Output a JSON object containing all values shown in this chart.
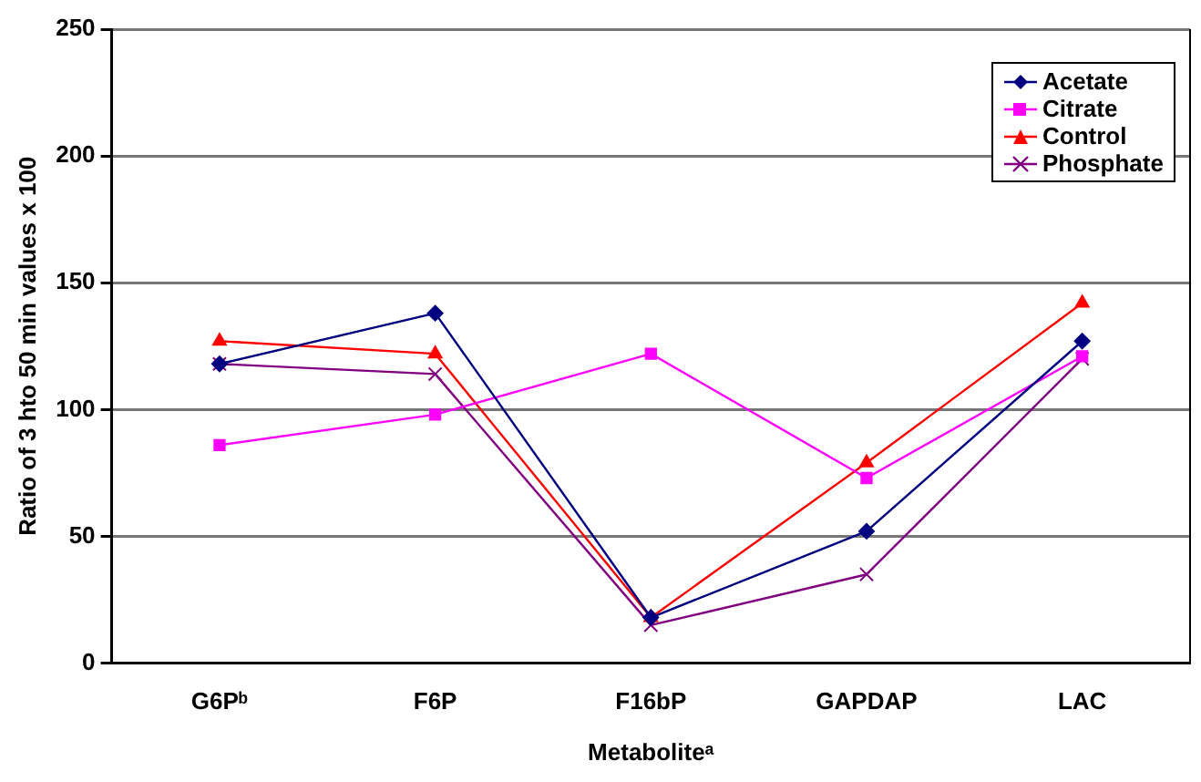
{
  "chart_data": {
    "type": "line",
    "xlabel": "Metaboliteᵃ",
    "ylabel": "Ratio of 3 hto 50 min values x 100",
    "categories": [
      "G6Pᵇ",
      "F6P",
      "F16bP",
      "GAPDAP",
      "LAC"
    ],
    "series": [
      {
        "name": "Acetate",
        "color": "#000080",
        "marker": "diamond",
        "values": [
          118,
          138,
          18,
          52,
          127
        ]
      },
      {
        "name": "Citrate",
        "color": "#ff00ff",
        "marker": "square",
        "values": [
          86,
          98,
          122,
          73,
          121
        ]
      },
      {
        "name": "Control",
        "color": "#ff0000",
        "marker": "triangle",
        "values": [
          127,
          122,
          18,
          79,
          142
        ]
      },
      {
        "name": "Phosphate",
        "color": "#800080",
        "marker": "cross",
        "values": [
          118,
          114,
          15,
          35,
          120
        ]
      }
    ],
    "ylim": [
      0,
      250
    ],
    "yticks": [
      0,
      50,
      100,
      150,
      200,
      250
    ],
    "grid": "y",
    "legend": "top right",
    "line_style": "solid"
  }
}
